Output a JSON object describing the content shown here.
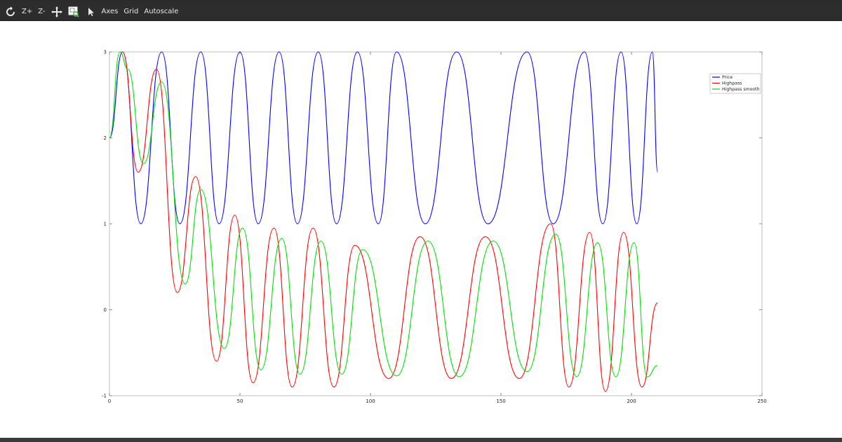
{
  "toolbar": {
    "items": [
      {
        "id": "refresh",
        "label": "",
        "icon": "refresh-icon"
      },
      {
        "id": "zoom-in",
        "label": "Z+"
      },
      {
        "id": "zoom-out",
        "label": "Z-"
      },
      {
        "id": "pan",
        "label": "",
        "icon": "move-icon"
      },
      {
        "id": "zoom-box",
        "label": "",
        "icon": "zoom-box-icon"
      },
      {
        "id": "select",
        "label": "",
        "icon": "pointer-icon"
      },
      {
        "id": "axes",
        "label": "Axes"
      },
      {
        "id": "grid",
        "label": "Grid"
      },
      {
        "id": "autoscale",
        "label": "Autoscale"
      }
    ]
  },
  "chart_data": {
    "type": "line",
    "title": "",
    "xlabel": "",
    "ylabel": "",
    "xlim": [
      0,
      250
    ],
    "ylim": [
      -1,
      3
    ],
    "xticks": [
      0,
      50,
      100,
      150,
      200,
      250
    ],
    "yticks": [
      -1,
      0,
      1,
      2,
      3
    ],
    "grid": false,
    "legend": "top-right",
    "series": [
      {
        "name": "Price",
        "color": "#0000ff",
        "points": [
          [
            0,
            2
          ],
          [
            5,
            3
          ],
          [
            12,
            1
          ],
          [
            20,
            3
          ],
          [
            27,
            1
          ],
          [
            35,
            3
          ],
          [
            42,
            1
          ],
          [
            50,
            3
          ],
          [
            57,
            1
          ],
          [
            65,
            3
          ],
          [
            72,
            1
          ],
          [
            80,
            3
          ],
          [
            87,
            1
          ],
          [
            95,
            3
          ],
          [
            103,
            1
          ],
          [
            110,
            3
          ],
          [
            121,
            1
          ],
          [
            133,
            3
          ],
          [
            145,
            1
          ],
          [
            160,
            3
          ],
          [
            170,
            1
          ],
          [
            182,
            3
          ],
          [
            189,
            1
          ],
          [
            196,
            3
          ],
          [
            202,
            1
          ],
          [
            208,
            3
          ],
          [
            210,
            1.6
          ]
        ]
      },
      {
        "name": "Highpass",
        "color": "#ff0000",
        "points": [
          [
            5,
            3
          ],
          [
            11,
            1.6
          ],
          [
            18,
            2.8
          ],
          [
            26,
            0.2
          ],
          [
            33,
            1.55
          ],
          [
            41,
            -0.6
          ],
          [
            48,
            1.1
          ],
          [
            55,
            -0.85
          ],
          [
            63,
            0.95
          ],
          [
            70,
            -0.9
          ],
          [
            78,
            0.95
          ],
          [
            86,
            -0.9
          ],
          [
            94,
            0.75
          ],
          [
            107,
            -0.8
          ],
          [
            119,
            0.85
          ],
          [
            131,
            -0.8
          ],
          [
            144,
            0.85
          ],
          [
            157,
            -0.8
          ],
          [
            169,
            1.0
          ],
          [
            176,
            -0.9
          ],
          [
            184,
            0.9
          ],
          [
            190,
            -0.95
          ],
          [
            197,
            0.9
          ],
          [
            204,
            -0.9
          ],
          [
            210,
            0.08
          ]
        ]
      },
      {
        "name": "Highpass smooth",
        "color": "#00e000",
        "points": [
          [
            0,
            2
          ],
          [
            4,
            3
          ],
          [
            7,
            2.8
          ],
          [
            13,
            1.7
          ],
          [
            20,
            2.65
          ],
          [
            29,
            0.3
          ],
          [
            35,
            1.4
          ],
          [
            44,
            -0.45
          ],
          [
            51,
            0.95
          ],
          [
            58,
            -0.7
          ],
          [
            66,
            0.83
          ],
          [
            73,
            -0.75
          ],
          [
            81,
            0.8
          ],
          [
            89,
            -0.75
          ],
          [
            97,
            0.7
          ],
          [
            110,
            -0.77
          ],
          [
            122,
            0.8
          ],
          [
            134,
            -0.78
          ],
          [
            147,
            0.8
          ],
          [
            160,
            -0.72
          ],
          [
            171,
            0.88
          ],
          [
            179,
            -0.78
          ],
          [
            187,
            0.78
          ],
          [
            194,
            -0.78
          ],
          [
            201,
            0.78
          ],
          [
            206,
            -0.78
          ],
          [
            210,
            -0.65
          ]
        ]
      }
    ]
  }
}
